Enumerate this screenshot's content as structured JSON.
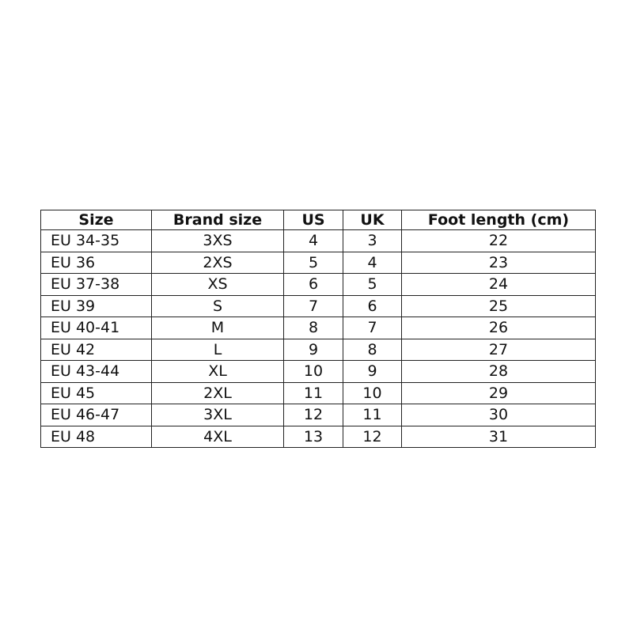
{
  "table": {
    "headers": [
      "Size",
      "Brand size",
      "US",
      "UK",
      "Foot length (cm)"
    ],
    "rows": [
      [
        "EU 34-35",
        "3XS",
        "4",
        "3",
        "22"
      ],
      [
        "EU 36",
        "2XS",
        "5",
        "4",
        "23"
      ],
      [
        "EU 37-38",
        "XS",
        "6",
        "5",
        "24"
      ],
      [
        "EU 39",
        "S",
        "7",
        "6",
        "25"
      ],
      [
        "EU 40-41",
        "M",
        "8",
        "7",
        "26"
      ],
      [
        "EU 42",
        "L",
        "9",
        "8",
        "27"
      ],
      [
        "EU 43-44",
        "XL",
        "10",
        "9",
        "28"
      ],
      [
        "EU 45",
        "2XL",
        "11",
        "10",
        "29"
      ],
      [
        "EU 46-47",
        "3XL",
        "12",
        "11",
        "30"
      ],
      [
        "EU 48",
        "4XL",
        "13",
        "12",
        "31"
      ]
    ]
  }
}
